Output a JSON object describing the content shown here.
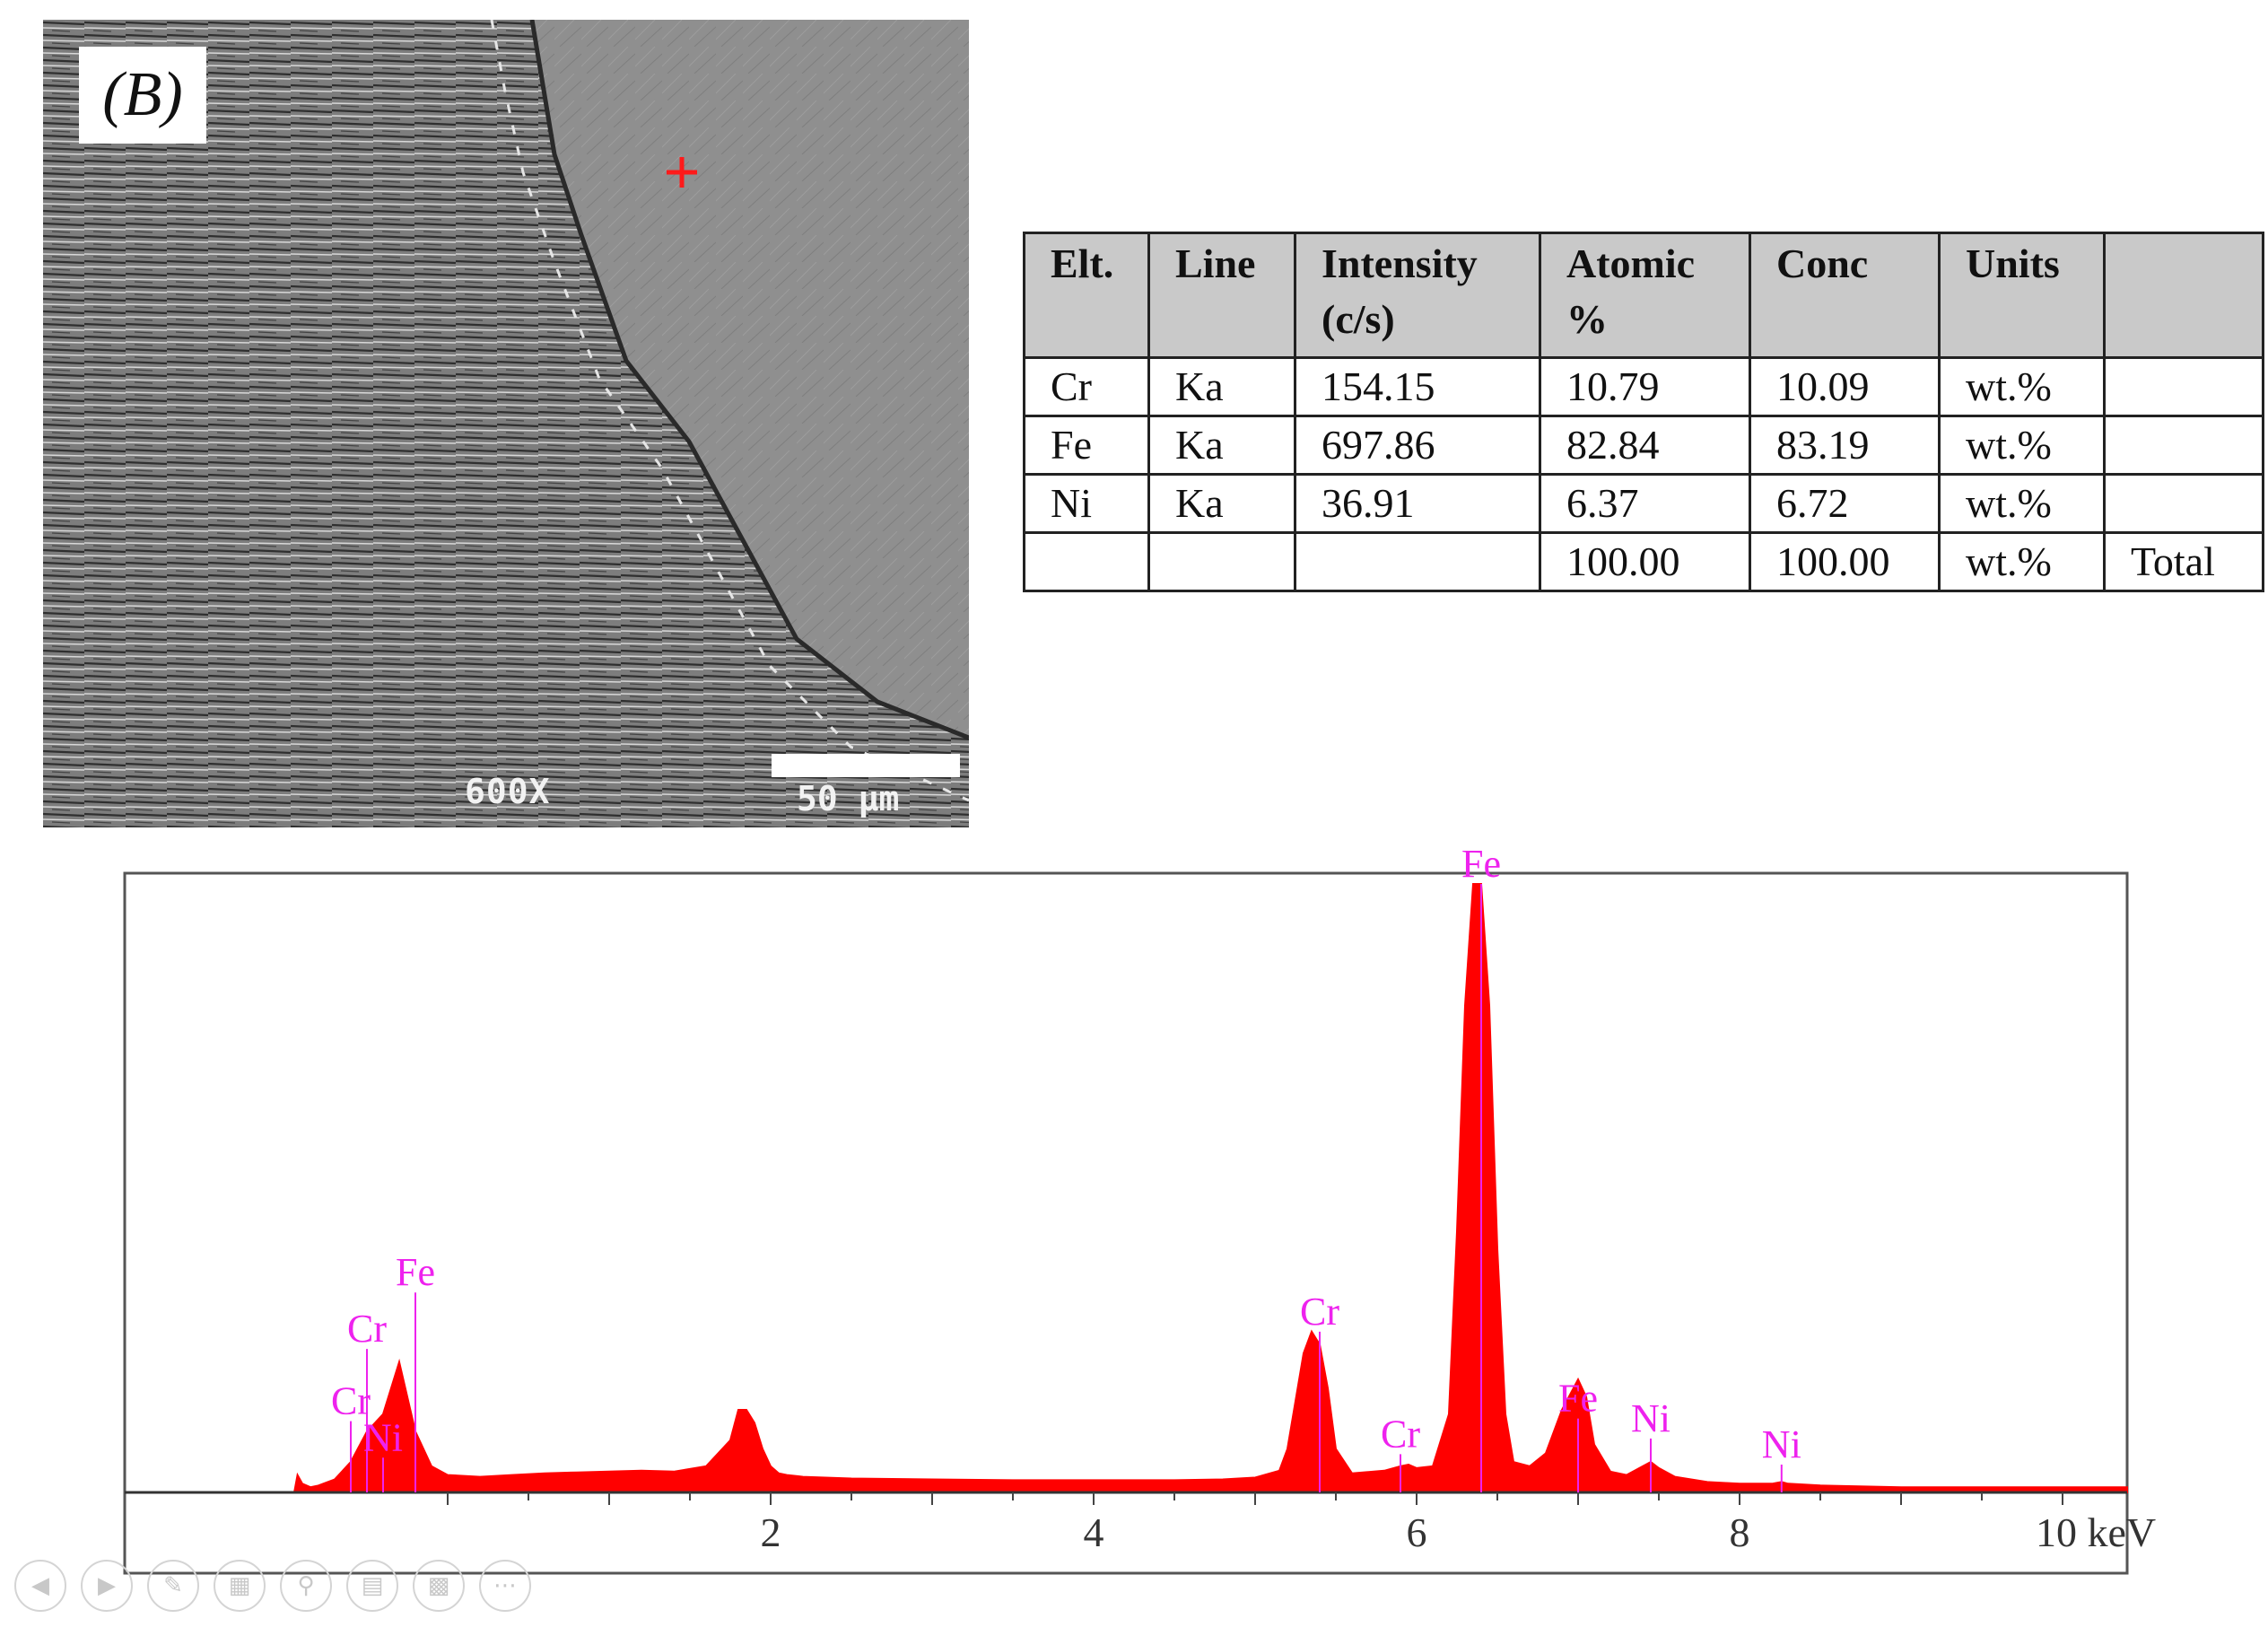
{
  "figure": {
    "panel_label": "(B)",
    "magnification": "600X",
    "scale_bar_label": "50 μm"
  },
  "table": {
    "headers": [
      "Elt.",
      "Line",
      "Intensity (c/s)",
      "Atomic %",
      "Conc",
      "Units",
      ""
    ],
    "rows": [
      [
        "Cr",
        "Ka",
        "154.15",
        "10.79",
        "10.09",
        "wt.%",
        ""
      ],
      [
        "Fe",
        "Ka",
        "697.86",
        "82.84",
        "83.19",
        "wt.%",
        ""
      ],
      [
        "Ni",
        "Ka",
        "36.91",
        "6.37",
        "6.72",
        "wt.%",
        ""
      ],
      [
        "",
        "",
        "",
        "100.00",
        "100.00",
        "wt.%",
        "Total"
      ]
    ]
  },
  "chart_data": {
    "type": "area",
    "xlabel": "keV",
    "xlim": [
      -2.0,
      10.4
    ],
    "x_ticks": [
      2,
      4,
      6,
      8,
      10
    ],
    "x_tick_labels": [
      "2",
      "4",
      "6",
      "8",
      "10 keV"
    ],
    "fill_color": "#ff0000",
    "label_color": "#ee22ee",
    "spectrum": {
      "x": [
        -0.95,
        -0.93,
        -0.9,
        -0.85,
        -0.8,
        -0.7,
        -0.6,
        -0.5,
        -0.4,
        -0.3,
        -0.2,
        -0.1,
        0.0,
        0.2,
        0.4,
        0.6,
        0.8,
        1.0,
        1.2,
        1.4,
        1.6,
        1.75,
        1.8,
        1.85,
        1.9,
        1.95,
        2.0,
        2.05,
        2.1,
        2.2,
        2.5,
        3.0,
        3.5,
        4.0,
        4.5,
        4.8,
        5.0,
        5.15,
        5.2,
        5.3,
        5.35,
        5.4,
        5.45,
        5.5,
        5.6,
        5.8,
        5.9,
        5.95,
        6.0,
        6.1,
        6.2,
        6.25,
        6.3,
        6.35,
        6.4,
        6.45,
        6.5,
        6.55,
        6.6,
        6.7,
        6.8,
        6.9,
        7.0,
        7.05,
        7.1,
        7.2,
        7.3,
        7.4,
        7.45,
        7.5,
        7.6,
        7.8,
        8.0,
        8.2,
        8.26,
        8.3,
        8.5,
        9.0,
        9.5,
        10.0,
        10.4
      ],
      "y": [
        0,
        20,
        10,
        6,
        8,
        15,
        35,
        70,
        90,
        150,
        70,
        30,
        20,
        18,
        20,
        22,
        23,
        24,
        25,
        24,
        30,
        60,
        95,
        95,
        80,
        50,
        30,
        22,
        20,
        18,
        16,
        15,
        14,
        14,
        14,
        15,
        17,
        25,
        50,
        160,
        185,
        170,
        120,
        50,
        22,
        25,
        30,
        32,
        28,
        30,
        90,
        300,
        560,
        700,
        700,
        560,
        280,
        90,
        35,
        30,
        45,
        95,
        130,
        110,
        55,
        24,
        20,
        30,
        35,
        28,
        18,
        12,
        10,
        10,
        12,
        10,
        8,
        6,
        6,
        6,
        6
      ]
    },
    "peak_labels": [
      {
        "label": "Fe",
        "x": 6.4,
        "y": 700
      },
      {
        "label": "Fe",
        "x": -0.2,
        "y": 230
      },
      {
        "label": "Cr",
        "x": -0.5,
        "y": 165
      },
      {
        "label": "Cr",
        "x": -0.6,
        "y": 82
      },
      {
        "label": "Ni",
        "x": -0.4,
        "y": 40
      },
      {
        "label": "Cr",
        "x": 5.4,
        "y": 185
      },
      {
        "label": "Cr",
        "x": 5.9,
        "y": 44
      },
      {
        "label": "Fe",
        "x": 7.0,
        "y": 85
      },
      {
        "label": "Ni",
        "x": 7.45,
        "y": 62
      },
      {
        "label": "Ni",
        "x": 8.26,
        "y": 32
      }
    ]
  },
  "toolbar": {
    "icons": [
      "prev-icon",
      "next-icon",
      "pen-icon",
      "slides-icon",
      "zoom-icon",
      "subtitles-icon",
      "camera-off-icon",
      "more-icon"
    ]
  }
}
